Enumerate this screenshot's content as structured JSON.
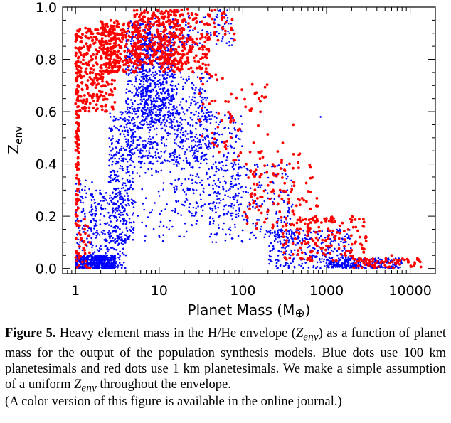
{
  "chart_data": {
    "type": "scatter",
    "title": "",
    "xlabel": "Planet Mass (M",
    "xlabel_symbol": "⊕",
    "xlabel_close": ")",
    "ylabel_main": "Z",
    "ylabel_sub": "env",
    "xscale": "log",
    "xlim": [
      0.7,
      20000
    ],
    "ylim": [
      -0.02,
      1.0
    ],
    "x_ticks": [
      1,
      10,
      100,
      1000,
      10000
    ],
    "x_tick_labels": [
      "1",
      "10",
      "100",
      "1000",
      "10000"
    ],
    "y_ticks": [
      0.0,
      0.2,
      0.4,
      0.6,
      0.8,
      1.0
    ],
    "y_tick_labels": [
      "0.0",
      "0.2",
      "0.4",
      "0.6",
      "0.8",
      "1.0"
    ],
    "grid": false,
    "legend": "none",
    "series": [
      {
        "color": "#0000ff",
        "marker_radius": 1.3,
        "clusters": [
          {
            "x": [
              1,
              3
            ],
            "y": [
              0.0,
              0.05
            ],
            "n": 500
          },
          {
            "x": [
              1,
              1.6
            ],
            "y": [
              0.0,
              0.35
            ],
            "n": 90
          },
          {
            "x": [
              1.5,
              4
            ],
            "y": [
              0.0,
              0.3
            ],
            "n": 250
          },
          {
            "x": [
              2.5,
              5
            ],
            "y": [
              0.1,
              0.6
            ],
            "n": 300
          },
          {
            "x": [
              4,
              8
            ],
            "y": [
              0.4,
              0.95
            ],
            "n": 400
          },
          {
            "x": [
              6,
              15
            ],
            "y": [
              0.55,
              0.9
            ],
            "n": 450
          },
          {
            "x": [
              8,
              40
            ],
            "y": [
              0.4,
              0.75
            ],
            "n": 350
          },
          {
            "x": [
              15,
              100
            ],
            "y": [
              0.2,
              0.6
            ],
            "n": 300
          },
          {
            "x": [
              40,
              400
            ],
            "y": [
              0.1,
              0.4
            ],
            "n": 250
          },
          {
            "x": [
              200,
              2000
            ],
            "y": [
              0.0,
              0.15
            ],
            "n": 300
          },
          {
            "x": [
              1000,
              8000
            ],
            "y": [
              0.0,
              0.04
            ],
            "n": 250
          },
          {
            "x": [
              8,
              80
            ],
            "y": [
              0.85,
              0.99
            ],
            "n": 120
          },
          {
            "x": [
              3,
              30
            ],
            "y": [
              0.1,
              0.45
            ],
            "n": 120
          }
        ],
        "points": [
          [
            850,
            0.58
          ]
        ]
      },
      {
        "color": "#ff0000",
        "marker_radius": 1.9,
        "clusters": [
          {
            "x": [
              1,
              1.1
            ],
            "y": [
              0.15,
              0.92
            ],
            "n": 140
          },
          {
            "x": [
              1.1,
              3
            ],
            "y": [
              0.6,
              0.92
            ],
            "n": 300
          },
          {
            "x": [
              2,
              6
            ],
            "y": [
              0.75,
              0.95
            ],
            "n": 250
          },
          {
            "x": [
              5,
              20
            ],
            "y": [
              0.78,
              0.99
            ],
            "n": 300
          },
          {
            "x": [
              10,
              40
            ],
            "y": [
              0.75,
              0.9
            ],
            "n": 150
          },
          {
            "x": [
              20,
              80
            ],
            "y": [
              0.85,
              1.0
            ],
            "n": 60
          },
          {
            "x": [
              30,
              200
            ],
            "y": [
              0.4,
              0.75
            ],
            "n": 70
          },
          {
            "x": [
              100,
              800
            ],
            "y": [
              0.15,
              0.45
            ],
            "n": 130
          },
          {
            "x": [
              300,
              3000
            ],
            "y": [
              0.03,
              0.2
            ],
            "n": 160
          },
          {
            "x": [
              2000,
              15000
            ],
            "y": [
              0.0,
              0.04
            ],
            "n": 70
          },
          {
            "x": [
              1,
              1.5
            ],
            "y": [
              0.0,
              0.2
            ],
            "n": 40
          }
        ],
        "points": [
          [
            400,
            0.55
          ],
          [
            300,
            0.48
          ],
          [
            2500,
            0.12
          ],
          [
            6000,
            0.05
          ]
        ]
      }
    ]
  },
  "caption": {
    "label": "Figure 5.",
    "part1": " Heavy element mass in the H/He envelope (",
    "symbol_main": "Z",
    "symbol_sub": "env",
    "part2": ") as a function of planet mass for the output of the population synthesis models. Blue dots use 100 km planetesimals and red dots use 1 km planetesimals. We make a simple assumption of a uniform ",
    "part3": " throughout the envelope."
  },
  "note": "(A color version of this figure is available in the online journal.)"
}
